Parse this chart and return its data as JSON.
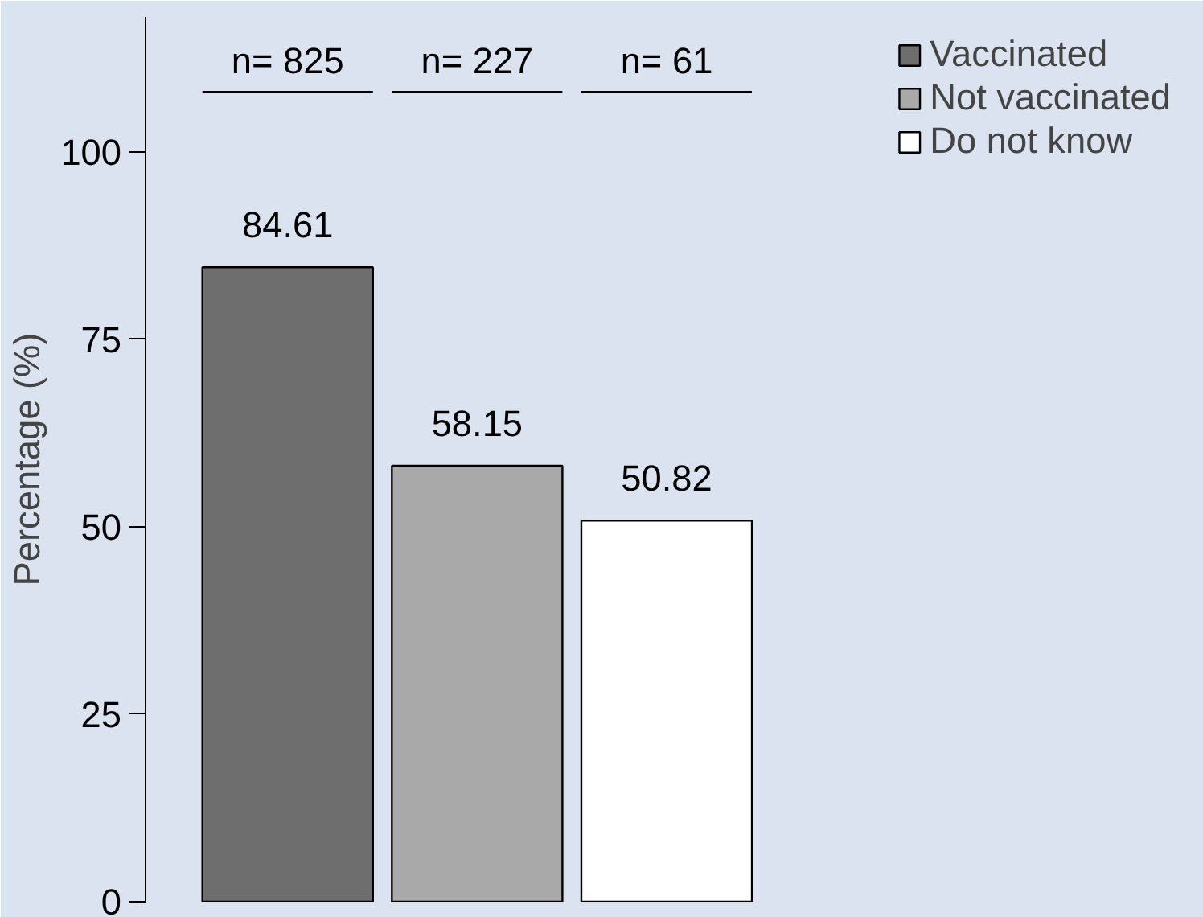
{
  "chart_data": {
    "type": "bar",
    "ylabel": "Percentage (%)",
    "categories": [
      null,
      null,
      null
    ],
    "stacked": true,
    "series": [
      {
        "name": "Vaccinated",
        "color": "#6e6e6e",
        "values": [
          84.61,
          null,
          null
        ]
      },
      {
        "name": "Not vaccinated",
        "color": "#a9a9a9",
        "values": [
          null,
          58.15,
          null
        ]
      },
      {
        "name": "Do not know",
        "color": "#ffffff",
        "values": [
          null,
          null,
          50.82
        ]
      }
    ],
    "annotations": [
      "n= 825",
      "n= 227",
      "n= 61"
    ],
    "ylim": [
      0,
      118
    ],
    "yticks": [
      0,
      25,
      50,
      75,
      100
    ],
    "grid": false,
    "legend": "top right",
    "data_labels": true,
    "tick_labels": "y"
  }
}
